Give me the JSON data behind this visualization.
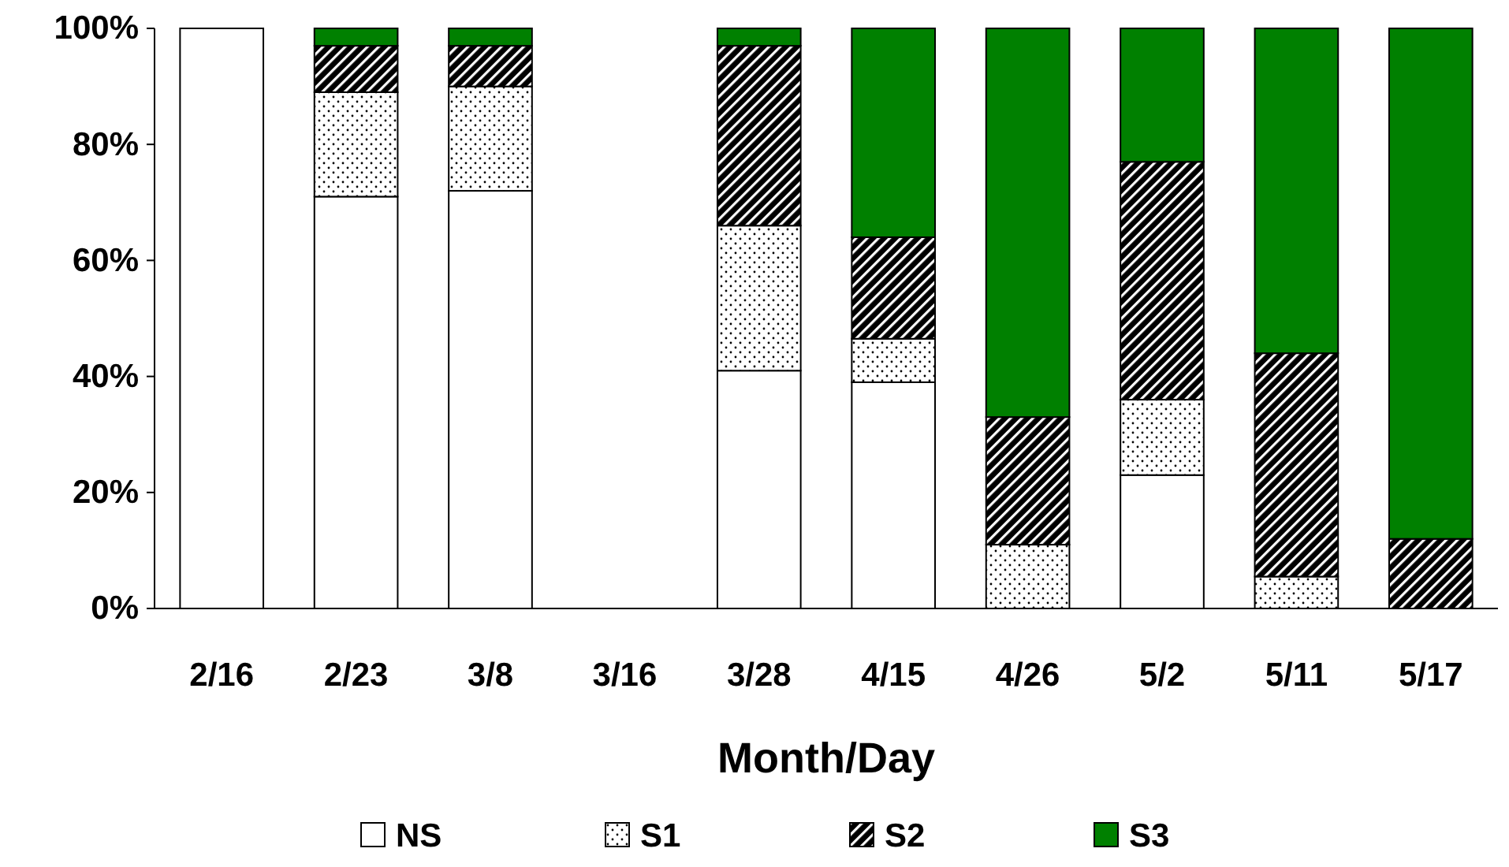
{
  "chart_data": {
    "type": "bar",
    "stacked": true,
    "xlabel": "Month/Day",
    "categories": [
      "2/16",
      "2/23",
      "3/8",
      "3/16",
      "3/28",
      "4/15",
      "4/26",
      "5/2",
      "5/11",
      "5/17"
    ],
    "series": [
      {
        "name": "NS",
        "color": "#ffffff",
        "values": [
          100,
          71,
          72,
          null,
          41,
          39,
          0,
          23,
          0,
          0
        ]
      },
      {
        "name": "S1",
        "color": "#000000",
        "values": [
          0,
          18,
          18,
          null,
          25,
          7.5,
          11,
          13,
          5.5,
          0
        ]
      },
      {
        "name": "S2",
        "color": "#000000",
        "values": [
          0,
          8,
          7,
          null,
          31,
          17.5,
          22,
          41,
          38.5,
          12
        ]
      },
      {
        "name": "S3",
        "color": "#008000",
        "values": [
          0,
          3,
          3,
          null,
          3,
          36,
          67,
          23,
          56,
          88
        ]
      }
    ],
    "ylim": [
      0,
      100
    ],
    "yticks": [
      {
        "value": 0,
        "label": "0%"
      },
      {
        "value": 20,
        "label": "20%"
      },
      {
        "value": 40,
        "label": "40%"
      },
      {
        "value": 60,
        "label": "60%"
      },
      {
        "value": 80,
        "label": "80%"
      },
      {
        "value": 100,
        "label": "100%"
      }
    ],
    "grid": false,
    "legend": "bottom"
  }
}
